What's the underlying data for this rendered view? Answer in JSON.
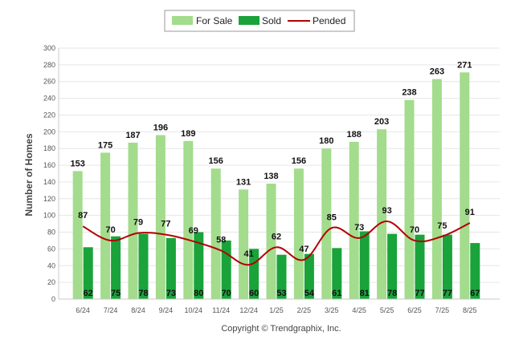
{
  "chart_data": {
    "type": "bar",
    "categories": [
      "6/24",
      "7/24",
      "8/24",
      "9/24",
      "10/24",
      "11/24",
      "12/24",
      "1/25",
      "2/25",
      "3/25",
      "4/25",
      "5/25",
      "6/25",
      "7/25",
      "8/25"
    ],
    "series": [
      {
        "name": "For Sale",
        "type": "bar",
        "color": "#a3dc8c",
        "values": [
          153,
          175,
          187,
          196,
          189,
          156,
          131,
          138,
          156,
          180,
          188,
          203,
          238,
          263,
          271
        ]
      },
      {
        "name": "Sold",
        "type": "bar",
        "color": "#19a33a",
        "values": [
          62,
          75,
          78,
          73,
          80,
          70,
          60,
          53,
          54,
          61,
          81,
          78,
          77,
          77,
          67
        ]
      },
      {
        "name": "Pended",
        "type": "line",
        "color": "#b30000",
        "values": [
          87,
          70,
          79,
          77,
          69,
          58,
          41,
          62,
          47,
          85,
          73,
          93,
          70,
          75,
          91
        ]
      }
    ],
    "ylabel": "Number of Homes",
    "xlabel": "",
    "ylim": [
      0,
      300
    ],
    "yticks": [
      0,
      20,
      40,
      60,
      80,
      100,
      120,
      140,
      160,
      180,
      200,
      220,
      240,
      260,
      280,
      300
    ],
    "grid": true,
    "legend_position": "top-center"
  },
  "footer": {
    "copyright": "Copyright © Trendgraphix, Inc."
  }
}
